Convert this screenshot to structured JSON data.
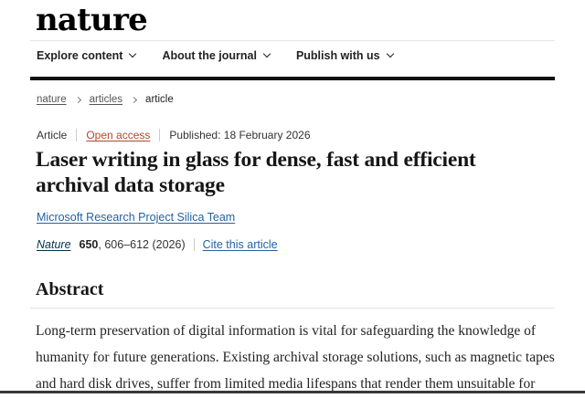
{
  "header": {
    "logo": "nature",
    "nav": [
      {
        "label": "Explore content"
      },
      {
        "label": "About the journal"
      },
      {
        "label": "Publish with us"
      }
    ]
  },
  "breadcrumb": {
    "items": [
      "nature",
      "articles",
      "article"
    ]
  },
  "article": {
    "type_label": "Article",
    "open_access_label": "Open access",
    "published_label": "Published: 18 February 2026",
    "title_lines": [
      "Laser writing in glass for dense, fast and efficient",
      "archival data storage"
    ],
    "authors_link": "Microsoft Research Project Silica Team",
    "citation": {
      "journal": "Nature",
      "volume": "650",
      "pages_suffix": ", 606–612 (2026)",
      "cite_link": "Cite this article"
    }
  },
  "abstract": {
    "heading": "Abstract",
    "lines": [
      "Long-term preservation of digital information is vital for safeguarding the knowledge of",
      "humanity for future generations. Existing archival storage solutions, such as magnetic tapes",
      "and hard disk drives, suffer from limited media lifespans that render them unsuitable for"
    ]
  },
  "colors": {
    "open_access_accent": "#b94629",
    "link_blue": "#2162a4",
    "journal_link_navy": "#01324b",
    "nav_bar_black": "#111111"
  }
}
